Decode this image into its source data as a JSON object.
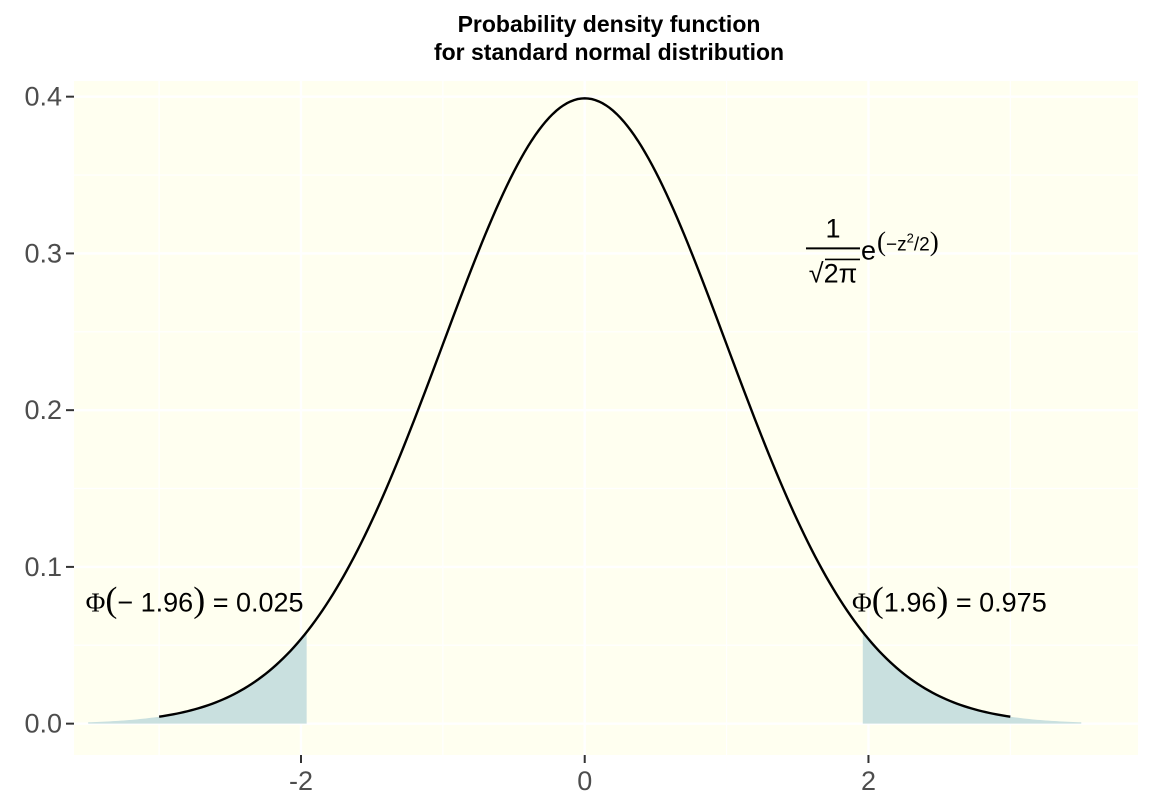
{
  "chart_data": {
    "type": "line",
    "title_lines": [
      "Probability density function",
      "for standard normal distribution"
    ],
    "xlabel": "",
    "ylabel": "",
    "xlim": [
      -3.6,
      3.9
    ],
    "ylim": [
      -0.02,
      0.41
    ],
    "x_ticks": [
      {
        "value": -2,
        "label": "-2"
      },
      {
        "value": 0,
        "label": "0"
      },
      {
        "value": 2,
        "label": "2"
      }
    ],
    "y_ticks": [
      {
        "value": 0.0,
        "label": "0.0"
      },
      {
        "value": 0.1,
        "label": "0.1"
      },
      {
        "value": 0.2,
        "label": "0.2"
      },
      {
        "value": 0.3,
        "label": "0.3"
      },
      {
        "value": 0.4,
        "label": "0.4"
      }
    ],
    "curve": {
      "function": "standard normal pdf",
      "x_range": [
        -3,
        3
      ],
      "color": "#000000",
      "points": [
        [
          -3.0,
          0.0044
        ],
        [
          -2.5,
          0.0175
        ],
        [
          -2.0,
          0.054
        ],
        [
          -1.5,
          0.1295
        ],
        [
          -1.0,
          0.242
        ],
        [
          -0.5,
          0.3521
        ],
        [
          0.0,
          0.3989
        ],
        [
          0.5,
          0.3521
        ],
        [
          1.0,
          0.242
        ],
        [
          1.5,
          0.1295
        ],
        [
          2.0,
          0.054
        ],
        [
          2.5,
          0.0175
        ],
        [
          3.0,
          0.0044
        ]
      ]
    },
    "shaded_regions": [
      {
        "x_range": [
          -3.5,
          -1.96
        ],
        "color": "#c9e0df"
      },
      {
        "x_range": [
          1.96,
          3.5
        ],
        "color": "#c9e0df"
      }
    ],
    "annotations": {
      "left": {
        "phi": "Φ",
        "arg": "− 1.96",
        "rhs": "= 0.025",
        "x": -2.75,
        "y": 0.078
      },
      "right": {
        "phi": "Φ",
        "arg": "1.96",
        "rhs": "= 0.975",
        "x": 2.5,
        "y": 0.078
      },
      "formula": {
        "numerator": "1",
        "sqrt_sign": "√",
        "radicand": "2π",
        "base": "e",
        "exponent": "−z",
        "exp_power": "2",
        "exp_denom": "/2",
        "x": 1.75,
        "y": 0.3
      }
    },
    "panel_background": "#fffff0",
    "grid": true,
    "legend": "none"
  }
}
